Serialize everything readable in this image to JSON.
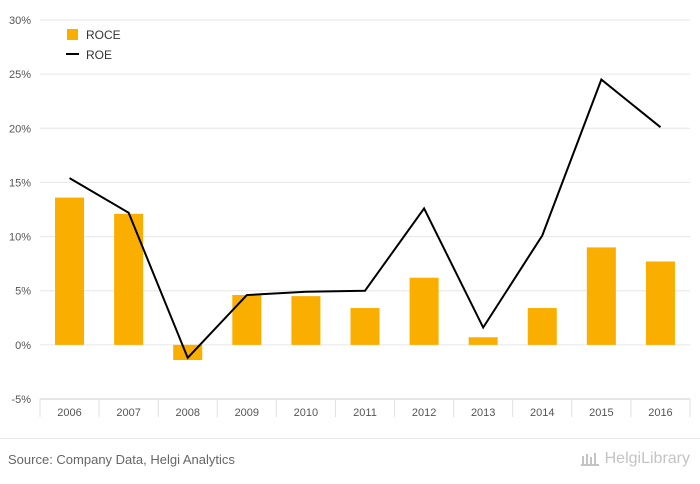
{
  "chart_data": {
    "type": "bar",
    "categories": [
      "2006",
      "2007",
      "2008",
      "2009",
      "2010",
      "2011",
      "2012",
      "2013",
      "2014",
      "2015",
      "2016"
    ],
    "series": [
      {
        "name": "ROCE",
        "type": "bar",
        "color": "#F9AE00",
        "values": [
          13.6,
          12.1,
          -1.4,
          4.6,
          4.5,
          3.4,
          6.2,
          0.7,
          3.4,
          9.0,
          7.7
        ]
      },
      {
        "name": "ROE",
        "type": "line",
        "color": "#000000",
        "values": [
          15.4,
          12.2,
          -1.2,
          4.6,
          4.9,
          5.0,
          12.6,
          1.6,
          10.1,
          24.5,
          20.1
        ]
      }
    ],
    "ylim": [
      -5,
      30
    ],
    "yticks": [
      -5,
      0,
      5,
      10,
      15,
      20,
      25,
      30
    ],
    "ytick_labels": [
      "-5%",
      "0%",
      "5%",
      "10%",
      "15%",
      "20%",
      "25%",
      "30%"
    ],
    "grid": true,
    "legend_position": "top-left"
  },
  "footer": {
    "source": "Source: Company Data, Helgi Analytics",
    "brand": "HelgiLibrary",
    "brand_icon": "library-icon"
  }
}
